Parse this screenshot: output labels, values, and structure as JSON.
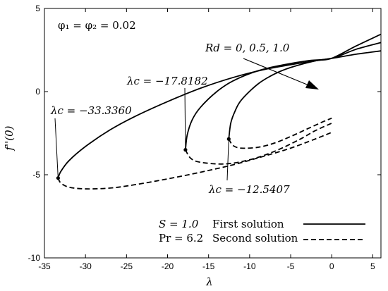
{
  "chart_data": {
    "type": "line",
    "xlabel": "λ",
    "ylabel": "f''(0)",
    "xlim": [
      -35,
      6
    ],
    "ylim": [
      -10,
      5
    ],
    "xticks": [
      -35,
      -30,
      -25,
      -20,
      -15,
      -10,
      -5,
      0,
      5
    ],
    "yticks": [
      -10,
      -5,
      0,
      5
    ],
    "grid": false,
    "legend_position": "bottom-right",
    "params_text": {
      "phi": "φ₁ = φ₂ = 0.02",
      "S": "S = 1.0",
      "Pr": "Pr = 6.2",
      "Rd": "Rd = 0, 0.5, 1.0"
    },
    "legend": [
      {
        "label": "First solution",
        "style": "solid"
      },
      {
        "label": "Second solution",
        "style": "dashed"
      }
    ],
    "critical_labels": [
      "λc = −33.3360",
      "λc = −17.8182",
      "λc = −12.5407"
    ],
    "series": [
      {
        "type": "first",
        "critical": [
          -33.336,
          -5.2
        ],
        "points": [
          [
            -33.336,
            -5.2
          ],
          [
            -33.0,
            -4.8
          ],
          [
            -32,
            -4.15
          ],
          [
            -30,
            -3.3
          ],
          [
            -27,
            -2.3
          ],
          [
            -24,
            -1.5
          ],
          [
            -20,
            -0.6
          ],
          [
            -16,
            0.2
          ],
          [
            -12,
            0.85
          ],
          [
            -8,
            1.35
          ],
          [
            -4,
            1.7
          ],
          [
            0,
            2.0
          ],
          [
            3,
            2.25
          ],
          [
            6,
            2.45
          ]
        ]
      },
      {
        "type": "second",
        "critical": [
          -33.336,
          -5.2
        ],
        "points": [
          [
            -33.336,
            -5.2
          ],
          [
            -33.0,
            -5.5
          ],
          [
            -32,
            -5.75
          ],
          [
            -30,
            -5.85
          ],
          [
            -27,
            -5.8
          ],
          [
            -24,
            -5.6
          ],
          [
            -20,
            -5.25
          ],
          [
            -16,
            -4.85
          ],
          [
            -12,
            -4.4
          ],
          [
            -8,
            -3.85
          ],
          [
            -5,
            -3.4
          ],
          [
            -2,
            -2.85
          ],
          [
            0,
            -2.45
          ]
        ]
      },
      {
        "type": "first",
        "critical": [
          -17.8182,
          -3.5
        ],
        "points": [
          [
            -17.8182,
            -3.5
          ],
          [
            -17.6,
            -2.6
          ],
          [
            -17,
            -1.7
          ],
          [
            -16,
            -0.95
          ],
          [
            -14,
            0.0
          ],
          [
            -12,
            0.65
          ],
          [
            -9,
            1.25
          ],
          [
            -6,
            1.6
          ],
          [
            -3,
            1.85
          ],
          [
            0,
            2.0
          ],
          [
            3,
            2.55
          ],
          [
            6,
            2.95
          ]
        ]
      },
      {
        "type": "second",
        "critical": [
          -17.8182,
          -3.5
        ],
        "points": [
          [
            -17.8182,
            -3.5
          ],
          [
            -17.2,
            -4.0
          ],
          [
            -16,
            -4.25
          ],
          [
            -13,
            -4.35
          ],
          [
            -10,
            -4.1
          ],
          [
            -7,
            -3.6
          ],
          [
            -4,
            -2.9
          ],
          [
            -2,
            -2.35
          ],
          [
            0,
            -1.9
          ]
        ]
      },
      {
        "type": "first",
        "critical": [
          -12.5407,
          -2.85
        ],
        "points": [
          [
            -12.5407,
            -2.85
          ],
          [
            -12.3,
            -1.9
          ],
          [
            -11.8,
            -1.2
          ],
          [
            -11,
            -0.5
          ],
          [
            -9,
            0.45
          ],
          [
            -7,
            1.05
          ],
          [
            -5,
            1.45
          ],
          [
            -2,
            1.85
          ],
          [
            0,
            2.0
          ],
          [
            3,
            2.75
          ],
          [
            6,
            3.45
          ]
        ]
      },
      {
        "type": "second",
        "critical": [
          -12.5407,
          -2.85
        ],
        "points": [
          [
            -12.5407,
            -2.85
          ],
          [
            -12,
            -3.25
          ],
          [
            -11,
            -3.4
          ],
          [
            -9,
            -3.35
          ],
          [
            -7,
            -3.1
          ],
          [
            -5,
            -2.7
          ],
          [
            -3,
            -2.25
          ],
          [
            -1,
            -1.8
          ],
          [
            0,
            -1.6
          ]
        ]
      }
    ]
  }
}
